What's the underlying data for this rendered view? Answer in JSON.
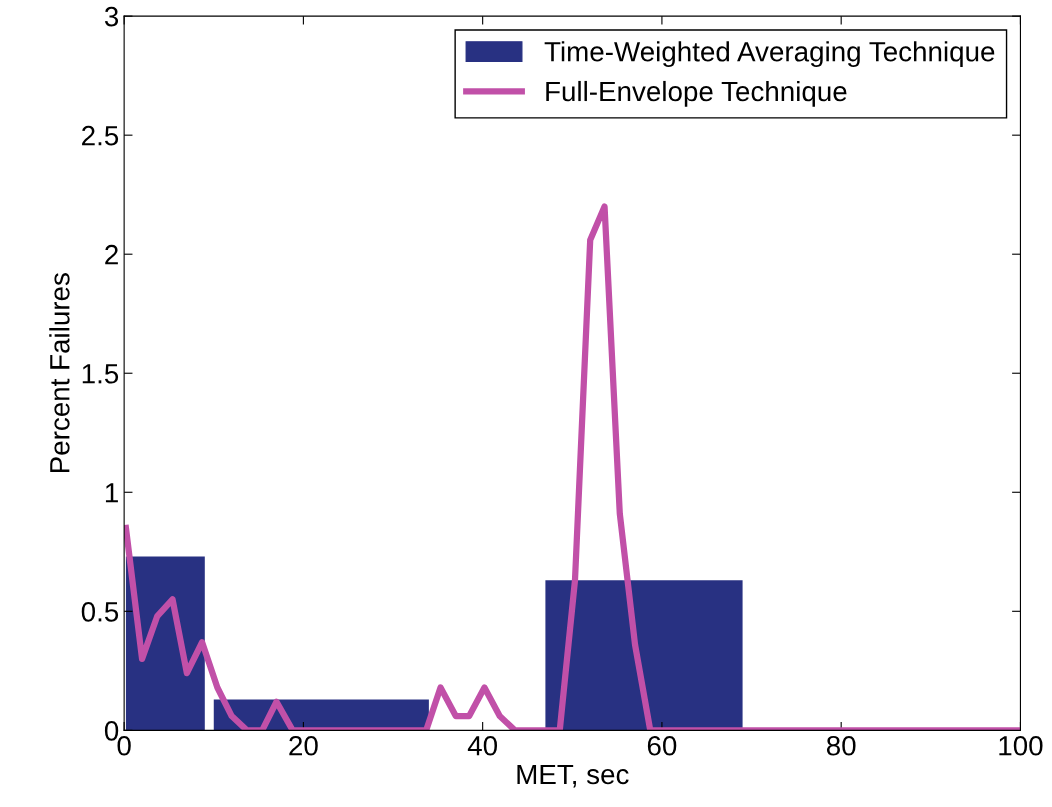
{
  "chart_data": {
    "type": "histogram",
    "xlabel": "MET, sec",
    "ylabel": "Percent Failures",
    "xlim": [
      0,
      100
    ],
    "xticks": [
      0,
      20,
      40,
      60,
      80,
      100
    ],
    "ylim": [
      0,
      3
    ],
    "yticks": [
      0,
      0.5,
      1,
      1.5,
      2,
      2.5,
      3
    ],
    "legend": "top right",
    "grid": false,
    "series": [
      {
        "name": "Time-Weighted Averaging Technique",
        "color": "#283182",
        "bins": [
          0.2,
          9,
          10,
          34,
          47,
          69
        ],
        "values": [
          0.73,
          0,
          0.13,
          0,
          0.63
        ]
      },
      {
        "name": "Full-Envelope Technique",
        "type": "line",
        "color": "#c150a8",
        "x": [
          0.2,
          2,
          3.7,
          5.4,
          7,
          8.7,
          10.4,
          12,
          13.7,
          15.4,
          17,
          18.8,
          33.7,
          35.3,
          37,
          38.5,
          40.2,
          41.9,
          43.6,
          48.6,
          50.3,
          52,
          53.6,
          55.3,
          57,
          58.7,
          100
        ],
        "values": [
          0.85,
          0.3,
          0.48,
          0.55,
          0.24,
          0.37,
          0.18,
          0.06,
          0,
          0,
          0.12,
          0,
          0,
          0.18,
          0.06,
          0.06,
          0.18,
          0.06,
          0,
          0,
          0.63,
          2.06,
          2.2,
          0.91,
          0.36,
          0,
          0
        ]
      }
    ]
  }
}
